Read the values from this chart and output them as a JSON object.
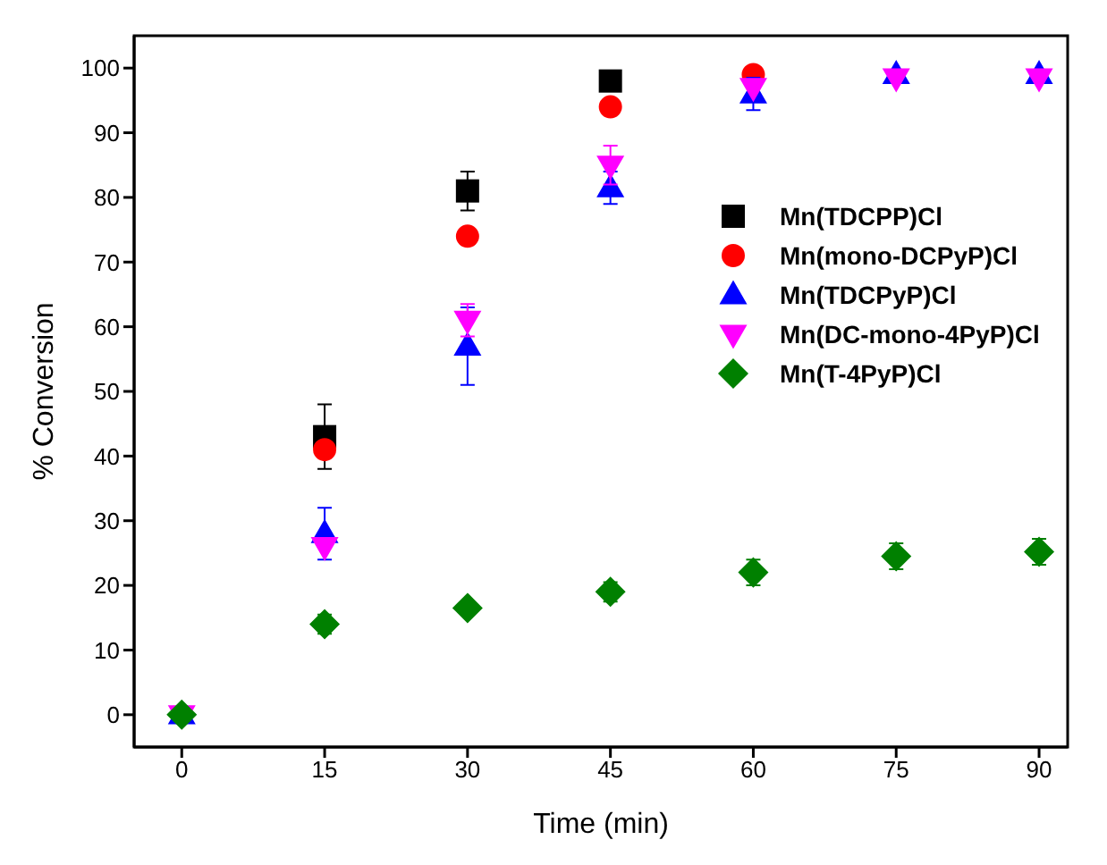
{
  "chart_data": {
    "type": "scatter",
    "xlabel": "Time (min)",
    "ylabel": "% Conversion",
    "x": [
      0,
      15,
      30,
      45,
      60,
      75,
      90
    ],
    "xlim": [
      -5,
      93
    ],
    "xticks": [
      0,
      15,
      30,
      45,
      60,
      75,
      90
    ],
    "ylim": [
      -5,
      105
    ],
    "yticks": [
      0,
      10,
      20,
      30,
      40,
      50,
      60,
      70,
      80,
      90,
      100
    ],
    "grid": false,
    "legend": "right",
    "series": [
      {
        "name": "Mn(TDCPP)Cl",
        "color": "#000000",
        "marker": "square",
        "values": [
          null,
          43,
          81,
          98,
          null,
          null,
          null
        ],
        "errors": [
          null,
          5,
          3,
          null,
          null,
          null,
          null
        ]
      },
      {
        "name": "Mn(mono-DCPyP)Cl",
        "color": "#ff0000",
        "marker": "circle",
        "values": [
          null,
          41,
          74,
          94,
          99,
          null,
          null
        ],
        "errors": [
          null,
          null,
          null,
          null,
          null,
          null,
          null
        ]
      },
      {
        "name": "Mn(TDCPyP)Cl",
        "color": "#0000ff",
        "marker": "triangle",
        "values": [
          0,
          28,
          57,
          81.5,
          96,
          99,
          99
        ],
        "errors": [
          null,
          4,
          6,
          2.5,
          2.5,
          null,
          null
        ]
      },
      {
        "name": "Mn(DC-mono-4PyP)Cl",
        "color": "#ff00ff",
        "marker": "triangle-down",
        "values": [
          0,
          26,
          61,
          85,
          97,
          98.5,
          98.5
        ],
        "errors": [
          null,
          null,
          2.5,
          3,
          null,
          null,
          null
        ]
      },
      {
        "name": "Mn(T-4PyP)Cl",
        "color": "#008000",
        "marker": "diamond",
        "values": [
          0,
          14,
          16.5,
          19,
          22,
          24.5,
          25.2
        ],
        "errors": [
          null,
          1.5,
          null,
          1.5,
          2,
          2,
          2
        ]
      }
    ]
  }
}
